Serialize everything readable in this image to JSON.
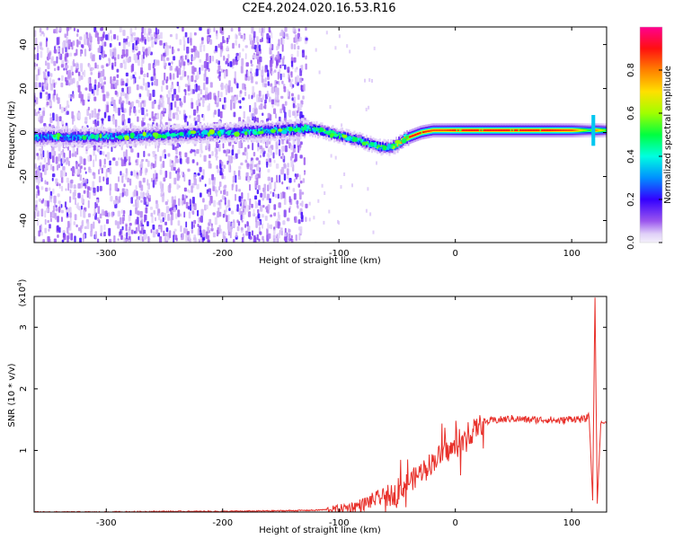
{
  "title": "C2E4.2024.020.16.53.R16",
  "colors": {
    "background": "#ffffff",
    "axis": "#000000",
    "snr_line": "#e8302a",
    "spectrogram_noise": "#8a2be2",
    "colorbar_stops": [
      "#e8e0f8",
      "#7f00ff",
      "#0000ff",
      "#00ffff",
      "#00ff00",
      "#ffff00",
      "#ff7f00",
      "#ff0000",
      "#ff00a0"
    ]
  },
  "chart_data": [
    {
      "type": "heatmap",
      "title": "",
      "xlabel": "Height of straight line (km)",
      "ylabel": "Frequency (Hz)",
      "xlim": [
        -362,
        130
      ],
      "ylim": [
        -50,
        48
      ],
      "x_ticks": [
        -300,
        -200,
        -100,
        0,
        100
      ],
      "y_ticks": [
        -40,
        -20,
        0,
        20,
        40
      ],
      "colorbar": {
        "label": "Normalized spectral amplitude",
        "range": [
          0,
          1
        ],
        "ticks": [
          0.0,
          0.2,
          0.4,
          0.6,
          0.8
        ]
      },
      "ridge": {
        "description": "Doppler ridge frequency (Hz) vs height (km)",
        "x": [
          -362,
          -300,
          -250,
          -200,
          -150,
          -125,
          -110,
          -95,
          -80,
          -70,
          -60,
          -52,
          -45,
          -40,
          -30,
          -20,
          -10,
          0,
          20,
          50,
          80,
          100,
          115,
          120,
          130
        ],
        "y": [
          -2,
          -2,
          -1,
          0,
          1,
          2,
          0,
          -2,
          -4,
          -6,
          -7,
          -6,
          -3,
          -2,
          0,
          1,
          1,
          1,
          1,
          1,
          1,
          1,
          1,
          1,
          1
        ],
        "peak_amplitude": [
          0.35,
          0.35,
          0.35,
          0.35,
          0.4,
          0.45,
          0.5,
          0.5,
          0.5,
          0.45,
          0.5,
          0.65,
          0.85,
          0.9,
          0.9,
          0.85,
          0.85,
          0.9,
          0.9,
          0.9,
          0.9,
          0.85,
          0.5,
          0.8,
          0.5
        ]
      },
      "noise_region_x": [
        -362,
        -128
      ]
    },
    {
      "type": "line",
      "title": "",
      "xlabel": "Height of straight line (km)",
      "ylabel": "SNR (10 * v/v)",
      "y_scale_note": "(x10",
      "y_scale_exp": "4",
      "y_scale_close": ")",
      "xlim": [
        -362,
        130
      ],
      "ylim": [
        0,
        3.5
      ],
      "x_ticks": [
        -300,
        -200,
        -100,
        0,
        100
      ],
      "y_ticks": [
        1,
        2,
        3
      ],
      "series": [
        {
          "units": "x10^4",
          "x": [
            -362,
            -300,
            -250,
            -200,
            -150,
            -120,
            -100,
            -90,
            -80,
            -70,
            -60,
            -50,
            -45,
            -40,
            -35,
            -30,
            -25,
            -20,
            -15,
            -10,
            -5,
            0,
            5,
            10,
            15,
            20,
            25,
            30,
            40,
            50,
            60,
            70,
            80,
            90,
            100,
            110,
            115,
            118,
            120,
            122,
            125,
            130
          ],
          "y": [
            0.0,
            0.0,
            0.01,
            0.01,
            0.02,
            0.03,
            0.05,
            0.08,
            0.12,
            0.2,
            0.25,
            0.3,
            0.4,
            0.5,
            0.55,
            0.65,
            0.75,
            0.8,
            0.9,
            0.95,
            1.0,
            1.05,
            1.1,
            1.2,
            1.3,
            1.4,
            1.45,
            1.48,
            1.5,
            1.52,
            1.5,
            1.5,
            1.5,
            1.48,
            1.52,
            1.5,
            1.55,
            0.2,
            3.5,
            0.15,
            1.45,
            1.45
          ]
        }
      ]
    }
  ]
}
